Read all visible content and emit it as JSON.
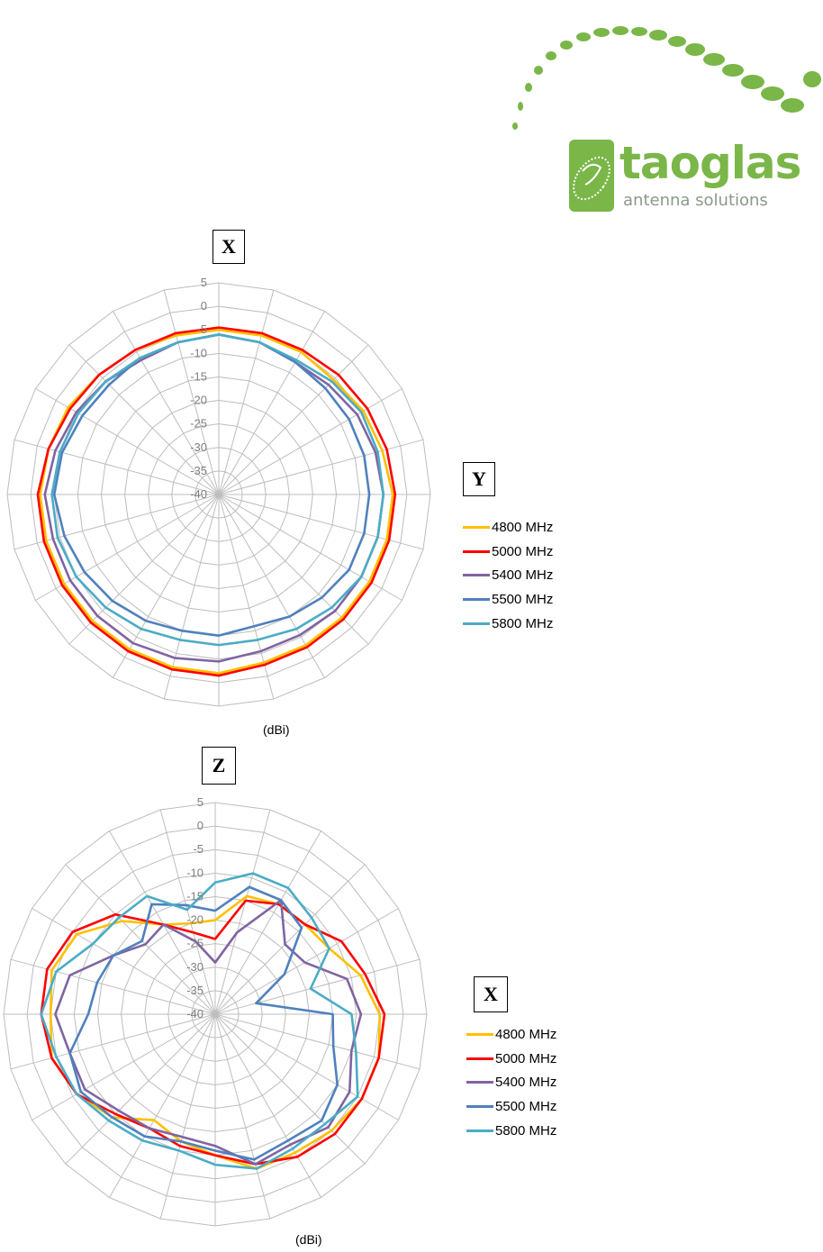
{
  "logo": {
    "wordmark": "taoglas",
    "tagline": "antenna solutions",
    "color": "#7ab648"
  },
  "chart_data": [
    {
      "type": "polar-line",
      "title": "",
      "axis_labels": {
        "top": "X",
        "right": "Y"
      },
      "unit_label": "(dBi)",
      "radial_ticks": [
        5,
        0,
        -5,
        -10,
        -15,
        -20,
        -25,
        -30,
        -35,
        -40
      ],
      "rlim": [
        -40,
        5
      ],
      "angle_step_deg": 15,
      "series": [
        {
          "name": "4800 MHz",
          "color": "#ffc000",
          "values": [
            -5,
            -5,
            -5,
            -5.5,
            -4.5,
            -4,
            -3,
            -3,
            -3,
            -3,
            -3,
            -3,
            -2,
            -2,
            -2,
            -2,
            -2,
            -2,
            -2,
            -2.5,
            -3,
            -4,
            -4.5,
            -5
          ]
        },
        {
          "name": "5000 MHz",
          "color": "#ff0000",
          "values": [
            -4.5,
            -4.5,
            -4.5,
            -4,
            -3.5,
            -3,
            -2.5,
            -2.5,
            -2.5,
            -2.5,
            -2.5,
            -2.5,
            -1.5,
            -1.5,
            -1.5,
            -1.5,
            -1.5,
            -1.5,
            -1.5,
            -2.5,
            -3.5,
            -4,
            -4.5,
            -4.5
          ]
        },
        {
          "name": "5400 MHz",
          "color": "#8064a2",
          "values": [
            -6,
            -6.5,
            -7.5,
            -7,
            -6,
            -5.5,
            -5,
            -5,
            -5,
            -5,
            -5.5,
            -5.5,
            -4.5,
            -4,
            -3.5,
            -3.5,
            -3.5,
            -3.5,
            -3,
            -4,
            -5,
            -6,
            -7,
            -6.5
          ]
        },
        {
          "name": "5500 MHz",
          "color": "#4f81bd",
          "values": [
            -6,
            -6.5,
            -7.5,
            -8,
            -8,
            -8,
            -8,
            -8,
            -8,
            -9,
            -10,
            -11,
            -10,
            -10,
            -9,
            -8,
            -7,
            -6,
            -5,
            -5.5,
            -6.5,
            -7,
            -6.5,
            -6.5
          ]
        },
        {
          "name": "5800 MHz",
          "color": "#4bacc6",
          "values": [
            -6,
            -6.5,
            -7,
            -6,
            -5,
            -5,
            -5,
            -5,
            -5,
            -6,
            -7,
            -8,
            -8,
            -8,
            -7,
            -6,
            -5,
            -4.5,
            -4.5,
            -5,
            -5.5,
            -6,
            -6.5,
            -6.5
          ]
        }
      ]
    },
    {
      "type": "polar-line",
      "title": "",
      "axis_labels": {
        "top": "Z",
        "right": "X"
      },
      "unit_label": "(dBi)",
      "radial_ticks": [
        5,
        0,
        -5,
        -10,
        -15,
        -20,
        -25,
        -30,
        -35,
        -40
      ],
      "rlim": [
        -40,
        5
      ],
      "angle_step_deg": 15,
      "series": [
        {
          "name": "4800 MHz",
          "color": "#ffc000",
          "values": [
            -20,
            -14,
            -13,
            -13,
            -12,
            -8,
            -5,
            -4,
            -4,
            -5,
            -6,
            -6,
            -10,
            -12,
            -14,
            -9,
            -6,
            -4,
            -5,
            -4,
            -6,
            -12,
            -18,
            -20
          ]
        },
        {
          "name": "5000 MHz",
          "color": "#ff0000",
          "values": [
            -24,
            -15,
            -13,
            -13,
            -9,
            -7,
            -4,
            -4,
            -4,
            -4,
            -5,
            -7,
            -10,
            -11,
            -12,
            -10,
            -6,
            -4,
            -3,
            -3,
            -5,
            -10,
            -18,
            -22
          ]
        },
        {
          "name": "5400 MHz",
          "color": "#8064a2",
          "values": [
            -29,
            -22,
            -12,
            -19,
            -18,
            -11,
            -9,
            -10,
            -7,
            -6,
            -8,
            -7,
            -12,
            -13,
            -12,
            -11,
            -8,
            -8,
            -6,
            -8,
            -15,
            -19,
            -18,
            -24
          ]
        },
        {
          "name": "5500 MHz",
          "color": "#4f81bd",
          "values": [
            -18,
            -12,
            -12,
            -14,
            -23,
            -31,
            -15,
            -14,
            -10,
            -8,
            -9,
            -8,
            -11,
            -12,
            -10,
            -9,
            -7,
            -8,
            -13,
            -14,
            -15,
            -18,
            -13,
            -16
          ]
        },
        {
          "name": "5800 MHz",
          "color": "#4bacc6",
          "values": [
            -12,
            -9,
            -9,
            -11,
            -12,
            -19,
            -11,
            -9,
            -5,
            -7,
            -7,
            -6,
            -8,
            -10,
            -9,
            -8,
            -6,
            -5,
            -3,
            -5,
            -10,
            -11,
            -11,
            -17
          ]
        }
      ]
    }
  ]
}
